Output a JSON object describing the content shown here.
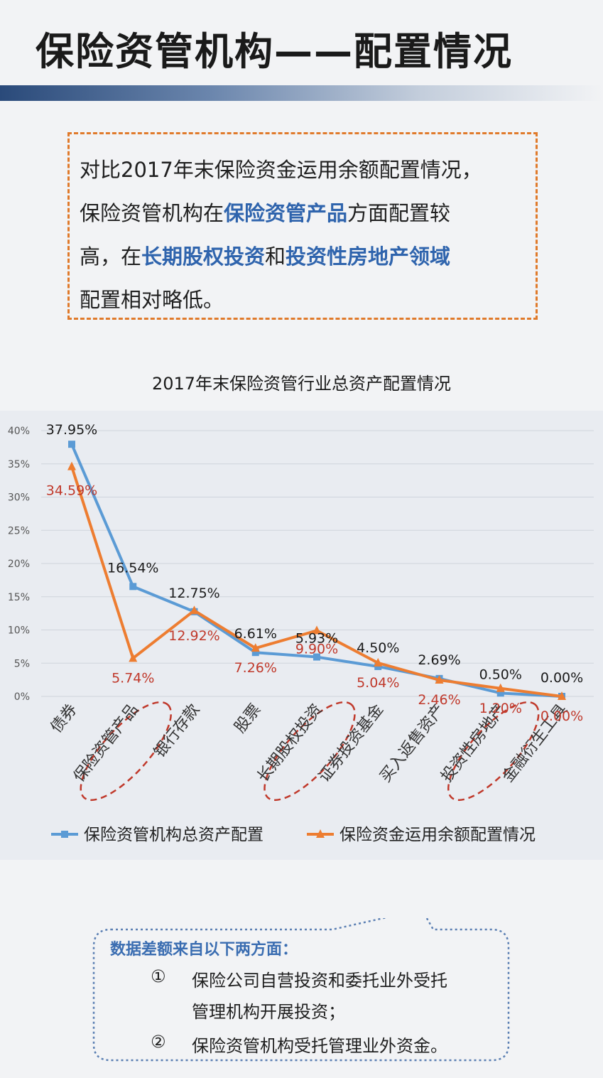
{
  "header": {
    "title": "保险资管机构——配置情况"
  },
  "intro": {
    "lines": [
      {
        "parts": [
          "对比2017年末保险资金运用余额配置情况，"
        ]
      },
      {
        "parts": [
          "保险资管机构在",
          "保险资管产品",
          "方面配置较"
        ]
      },
      {
        "parts": [
          "高，在",
          "长期股权投资",
          "和",
          "投资性房地产领域"
        ]
      },
      {
        "parts": [
          "配置相对略低。"
        ]
      }
    ]
  },
  "chart_data": {
    "type": "line",
    "title": "2017年末保险资管行业总资产配置情况",
    "categories": [
      "债券",
      "保险资管产品",
      "银行存款",
      "股票",
      "长期股权投资",
      "证券投资基金",
      "买入返售资产",
      "投资性房地产",
      "金融衍生工具"
    ],
    "yticks": [
      "0%",
      "5%",
      "10%",
      "15%",
      "20%",
      "25%",
      "30%",
      "35%",
      "40%"
    ],
    "ylim": [
      0,
      40
    ],
    "grid": true,
    "legend_position": "bottom",
    "highlighted_categories": [
      "保险资管产品",
      "长期股权投资",
      "投资性房地产"
    ],
    "series": [
      {
        "name": "保险资管机构总资产配置",
        "color": "#5b9bd5",
        "label_color": "#1a1a1a",
        "values": [
          37.95,
          16.54,
          12.75,
          6.61,
          5.93,
          4.5,
          2.69,
          0.5,
          0.0
        ],
        "labels": [
          "37.95%",
          "16.54%",
          "12.75%",
          "6.61%",
          "5.93%",
          "4.50%",
          "2.69%",
          "0.50%",
          "0.00%"
        ]
      },
      {
        "name": "保险资金运用余额配置情况",
        "color": "#ed7d31",
        "label_color": "#c0392b",
        "values": [
          34.59,
          5.74,
          12.92,
          7.26,
          9.9,
          5.04,
          2.46,
          1.2,
          0.0
        ],
        "labels": [
          "34.59%",
          "5.74%",
          "12.92%",
          "7.26%",
          "9.90%",
          "5.04%",
          "2.46%",
          "1.20%",
          "0.00%"
        ]
      }
    ]
  },
  "note": {
    "heading": "数据差额来自以下两方面：",
    "markers": [
      "①",
      "②"
    ],
    "item1_line1": "保险公司自营投资和委托业外受托",
    "item1_line2": "管理机构开展投资；",
    "item2": "保险资管机构受托管理业外资金。"
  }
}
